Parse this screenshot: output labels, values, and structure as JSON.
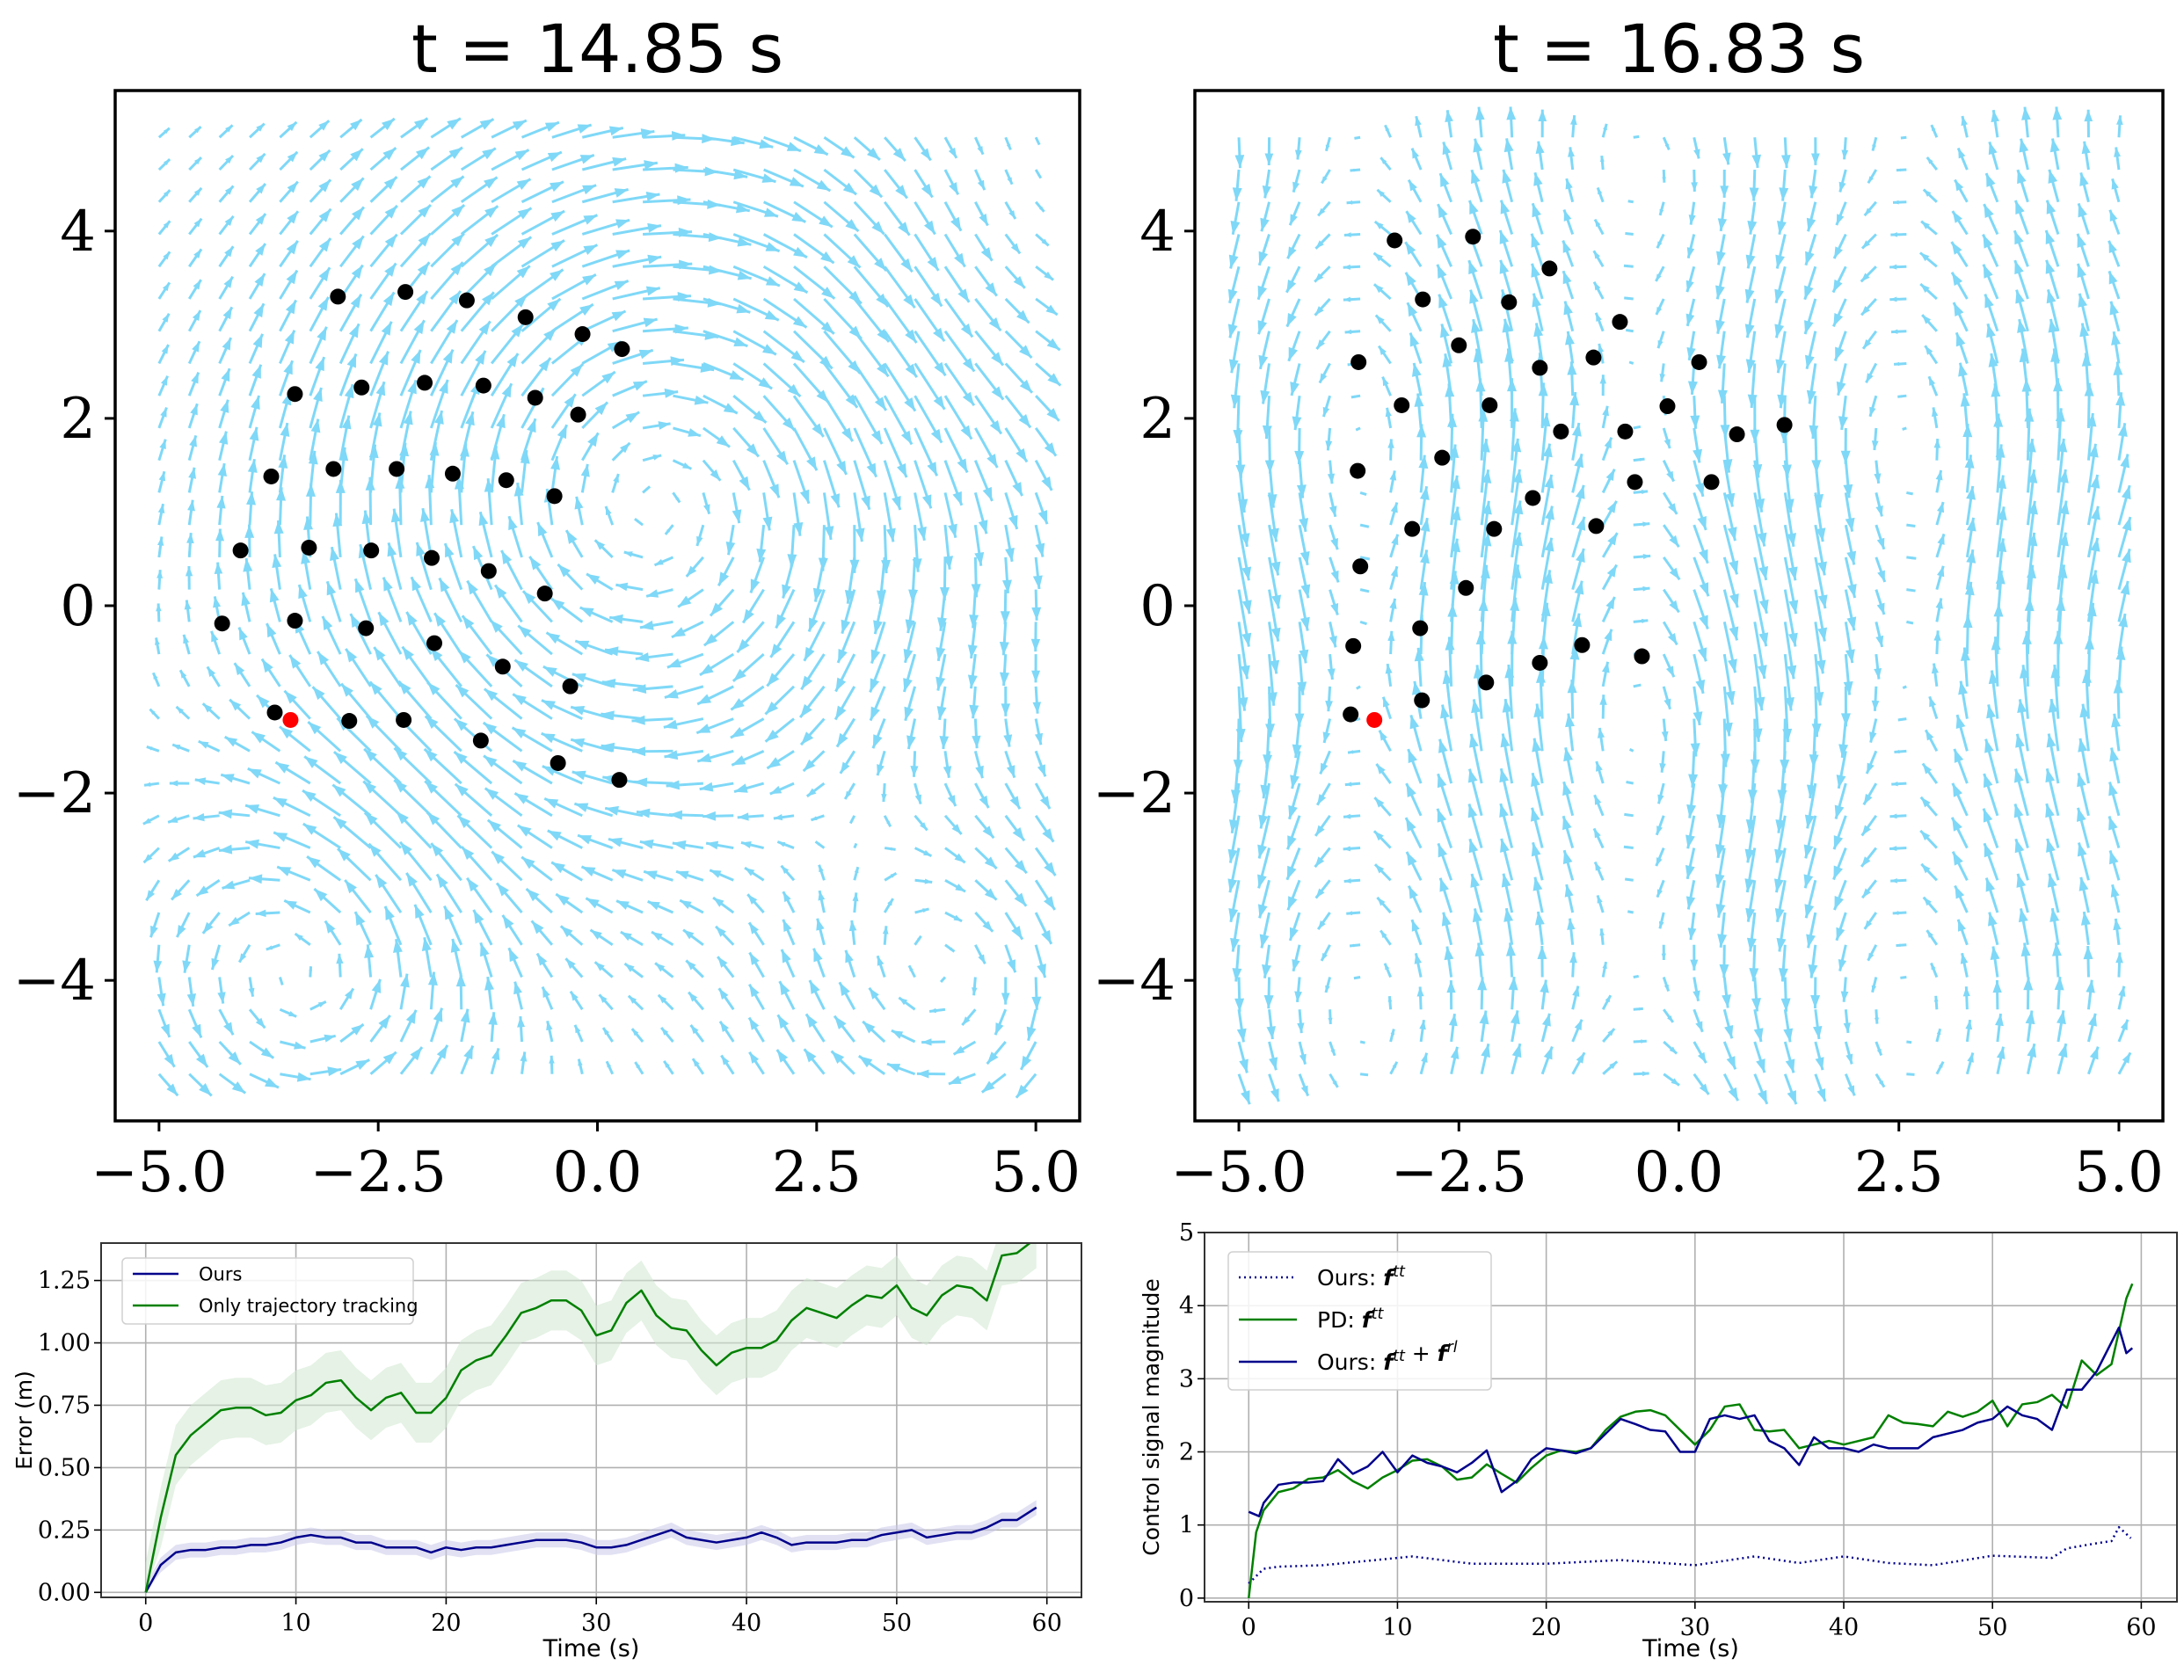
{
  "chart_data": [
    {
      "type": "quiver+scatter",
      "title": "t = 14.85 s",
      "xlim": [
        -5.5,
        5.5
      ],
      "ylim": [
        -5.5,
        5.5
      ],
      "xticks": [
        -5,
        -2.5,
        0,
        2.5,
        5
      ],
      "xtick_labels": [
        "−5.0",
        "−2.5",
        "0.0",
        "2.5",
        "5.0"
      ],
      "yticks": [
        4,
        2,
        0,
        -2,
        -4
      ],
      "ytick_labels": [
        "4",
        "2",
        "0",
        "−2",
        "−4"
      ],
      "grid": false,
      "field": {
        "x_range": [
          -5,
          5
        ],
        "y_range": [
          -5,
          5
        ],
        "points_per_axis": 30,
        "pattern": "vortical flow",
        "color": "#7fd8f7"
      },
      "agents": {
        "color": "#000000",
        "points": [
          [
            -2.96,
            3.3
          ],
          [
            -2.19,
            3.35
          ],
          [
            -1.49,
            3.26
          ],
          [
            -0.82,
            3.08
          ],
          [
            -0.17,
            2.9
          ],
          [
            0.28,
            2.74
          ],
          [
            -3.45,
            2.26
          ],
          [
            -2.69,
            2.33
          ],
          [
            -1.97,
            2.38
          ],
          [
            -1.3,
            2.35
          ],
          [
            -0.71,
            2.22
          ],
          [
            -0.22,
            2.04
          ],
          [
            -3.72,
            1.38
          ],
          [
            -3.01,
            1.46
          ],
          [
            -2.29,
            1.46
          ],
          [
            -1.65,
            1.41
          ],
          [
            -1.04,
            1.34
          ],
          [
            -0.49,
            1.17
          ],
          [
            -4.07,
            0.59
          ],
          [
            -3.29,
            0.62
          ],
          [
            -2.58,
            0.59
          ],
          [
            -1.89,
            0.51
          ],
          [
            -1.24,
            0.37
          ],
          [
            -0.6,
            0.13
          ],
          [
            -4.28,
            -0.19
          ],
          [
            -3.45,
            -0.16
          ],
          [
            -2.64,
            -0.24
          ],
          [
            -1.86,
            -0.4
          ],
          [
            -1.08,
            -0.65
          ],
          [
            -0.31,
            -0.86
          ],
          [
            -3.68,
            -1.14
          ],
          [
            -2.83,
            -1.23
          ],
          [
            -2.21,
            -1.22
          ],
          [
            -1.33,
            -1.44
          ],
          [
            -0.45,
            -1.68
          ],
          [
            0.25,
            -1.86
          ]
        ]
      },
      "highlight": {
        "color": "#ff0000",
        "point": [
          -3.5,
          -1.22
        ]
      }
    },
    {
      "type": "quiver+scatter",
      "title": "t = 16.83 s",
      "xlim": [
        -5.5,
        5.5
      ],
      "ylim": [
        -5.5,
        5.5
      ],
      "xticks": [
        -5,
        -2.5,
        0,
        2.5,
        5
      ],
      "xtick_labels": [
        "−5.0",
        "−2.5",
        "0.0",
        "2.5",
        "5.0"
      ],
      "yticks": [
        4,
        2,
        0,
        -2,
        -4
      ],
      "ytick_labels": [
        "4",
        "2",
        "0",
        "−2",
        "−4"
      ],
      "grid": false,
      "field": {
        "x_range": [
          -5,
          5
        ],
        "y_range": [
          -5,
          5
        ],
        "points_per_axis": 30,
        "pattern": "vertical bands",
        "color": "#7fd8f7"
      },
      "agents": {
        "color": "#000000",
        "points": [
          [
            -3.23,
            3.9
          ],
          [
            -2.34,
            3.94
          ],
          [
            -1.47,
            3.6
          ],
          [
            -2.91,
            3.27
          ],
          [
            -1.93,
            3.24
          ],
          [
            -0.67,
            3.03
          ],
          [
            -3.64,
            2.6
          ],
          [
            -2.5,
            2.78
          ],
          [
            -1.58,
            2.54
          ],
          [
            -0.97,
            2.65
          ],
          [
            0.23,
            2.6
          ],
          [
            -3.15,
            2.14
          ],
          [
            -2.15,
            2.14
          ],
          [
            -1.34,
            1.86
          ],
          [
            -0.61,
            1.86
          ],
          [
            -0.13,
            2.13
          ],
          [
            0.66,
            1.83
          ],
          [
            1.2,
            1.93
          ],
          [
            -3.65,
            1.44
          ],
          [
            -2.69,
            1.58
          ],
          [
            -1.66,
            1.15
          ],
          [
            -0.5,
            1.32
          ],
          [
            0.37,
            1.32
          ],
          [
            -3.62,
            0.42
          ],
          [
            -3.03,
            0.82
          ],
          [
            -2.1,
            0.82
          ],
          [
            -0.94,
            0.85
          ],
          [
            -2.42,
            0.19
          ],
          [
            -3.7,
            -0.43
          ],
          [
            -2.94,
            -0.24
          ],
          [
            -1.1,
            -0.42
          ],
          [
            -0.42,
            -0.54
          ],
          [
            -1.58,
            -0.61
          ],
          [
            -2.19,
            -0.82
          ],
          [
            -2.92,
            -1.01
          ],
          [
            -3.73,
            -1.16
          ]
        ]
      },
      "highlight": {
        "color": "#ff0000",
        "point": [
          -3.46,
          -1.22
        ]
      }
    },
    {
      "type": "line",
      "xlabel": "Time (s)",
      "ylabel": "Error (m)",
      "xlim": [
        -2.97,
        62.3
      ],
      "ylim": [
        -0.02,
        1.4
      ],
      "xticks": [
        0,
        10,
        20,
        30,
        40,
        50,
        60
      ],
      "xtick_labels": [
        "0",
        "10",
        "20",
        "30",
        "40",
        "50",
        "60"
      ],
      "yticks": [
        0,
        0.25,
        0.5,
        0.75,
        1.0,
        1.25
      ],
      "ytick_labels": [
        "0.00",
        "0.25",
        "0.50",
        "0.75",
        "1.00",
        "1.25"
      ],
      "grid": true,
      "legend": "upper-left",
      "x": [
        0,
        1,
        2,
        3,
        4,
        5,
        6,
        7,
        8,
        9,
        10,
        11,
        12,
        13,
        14,
        15,
        16,
        17,
        18,
        19,
        20,
        21,
        22,
        23,
        24,
        25,
        26,
        27,
        28,
        29,
        30,
        31,
        32,
        33,
        34,
        35,
        36,
        37,
        38,
        39,
        40,
        41,
        42,
        43,
        44,
        45,
        46,
        47,
        48,
        49,
        50,
        51,
        52,
        53,
        54,
        55,
        56,
        57,
        58,
        59.3
      ],
      "series": [
        {
          "name": "Ours",
          "color": "#00008b",
          "band_color": "#c8c8ea",
          "values": [
            0,
            0.11,
            0.16,
            0.17,
            0.17,
            0.18,
            0.18,
            0.19,
            0.19,
            0.2,
            0.22,
            0.23,
            0.22,
            0.22,
            0.2,
            0.2,
            0.18,
            0.18,
            0.18,
            0.16,
            0.18,
            0.17,
            0.18,
            0.18,
            0.19,
            0.2,
            0.21,
            0.21,
            0.21,
            0.2,
            0.18,
            0.18,
            0.19,
            0.21,
            0.23,
            0.25,
            0.22,
            0.21,
            0.2,
            0.21,
            0.22,
            0.24,
            0.22,
            0.19,
            0.2,
            0.2,
            0.2,
            0.21,
            0.21,
            0.23,
            0.24,
            0.25,
            0.22,
            0.23,
            0.24,
            0.24,
            0.26,
            0.29,
            0.29,
            0.34
          ],
          "band": 0.03
        },
        {
          "name": "Only trajectory tracking",
          "color": "#008000",
          "band_color": "#cfe8cf",
          "values": [
            0,
            0.3,
            0.55,
            0.63,
            0.68,
            0.73,
            0.74,
            0.74,
            0.71,
            0.72,
            0.77,
            0.79,
            0.84,
            0.85,
            0.78,
            0.73,
            0.78,
            0.8,
            0.72,
            0.72,
            0.78,
            0.89,
            0.93,
            0.95,
            1.03,
            1.12,
            1.14,
            1.17,
            1.17,
            1.13,
            1.03,
            1.05,
            1.16,
            1.21,
            1.11,
            1.06,
            1.05,
            0.97,
            0.91,
            0.96,
            0.98,
            0.98,
            1.01,
            1.09,
            1.14,
            1.12,
            1.1,
            1.15,
            1.19,
            1.18,
            1.23,
            1.14,
            1.11,
            1.19,
            1.23,
            1.22,
            1.17,
            1.35,
            1.36,
            1.42
          ],
          "band": 0.12
        }
      ]
    },
    {
      "type": "line",
      "xlabel": "Time (s)",
      "ylabel": "Control signal magnitude",
      "xlim": [
        -2.97,
        62.4
      ],
      "ylim": [
        -0.05,
        5
      ],
      "xticks": [
        0,
        10,
        20,
        30,
        40,
        50,
        60
      ],
      "xtick_labels": [
        "0",
        "10",
        "20",
        "30",
        "40",
        "50",
        "60"
      ],
      "yticks": [
        0,
        1,
        2,
        3,
        4,
        5
      ],
      "ytick_labels": [
        "0",
        "1",
        "2",
        "3",
        "4",
        "5"
      ],
      "grid": true,
      "legend": "upper-left",
      "series": [
        {
          "name": "Ours: f^{tt}",
          "color": "#00008b",
          "style": "dotted",
          "x": [
            0,
            1,
            2,
            5,
            10,
            11,
            15,
            20,
            25,
            30,
            34,
            37,
            40,
            43,
            46,
            50,
            54,
            55,
            57,
            58,
            58.5,
            59.3
          ],
          "values": [
            0.2,
            0.4,
            0.43,
            0.45,
            0.55,
            0.57,
            0.47,
            0.47,
            0.52,
            0.45,
            0.57,
            0.48,
            0.57,
            0.48,
            0.45,
            0.58,
            0.55,
            0.68,
            0.75,
            0.78,
            0.97,
            0.82
          ]
        },
        {
          "name": "PD: f^{tt}",
          "color": "#008000",
          "style": "solid",
          "x": [
            0,
            0.5,
            1,
            2,
            3,
            4,
            5,
            6,
            7,
            8,
            9,
            10,
            11,
            12,
            13,
            14,
            15,
            16,
            17,
            18,
            19,
            20,
            21,
            22,
            23,
            24,
            25,
            26,
            27,
            28,
            29,
            30,
            31,
            32,
            33,
            34,
            35,
            36,
            37,
            38,
            39,
            40,
            41,
            42,
            43,
            44,
            45,
            46,
            47,
            48,
            49,
            50,
            51,
            52,
            53,
            54,
            55,
            56,
            57,
            58,
            59,
            59.4
          ],
          "values": [
            0,
            0.9,
            1.2,
            1.45,
            1.5,
            1.63,
            1.65,
            1.75,
            1.6,
            1.5,
            1.65,
            1.75,
            1.88,
            1.9,
            1.8,
            1.62,
            1.65,
            1.83,
            1.7,
            1.58,
            1.78,
            1.95,
            2.02,
            2.0,
            2.05,
            2.3,
            2.48,
            2.55,
            2.57,
            2.5,
            2.3,
            2.1,
            2.3,
            2.62,
            2.65,
            2.3,
            2.28,
            2.3,
            2.05,
            2.1,
            2.15,
            2.1,
            2.15,
            2.2,
            2.5,
            2.4,
            2.38,
            2.35,
            2.55,
            2.48,
            2.55,
            2.7,
            2.35,
            2.65,
            2.68,
            2.78,
            2.6,
            3.25,
            3.05,
            3.2,
            4.1,
            4.3
          ]
        },
        {
          "name": "Ours: f^{tt} + f^{rl}",
          "color": "#00008b",
          "style": "solid",
          "x": [
            0,
            0.7,
            1,
            2,
            3,
            4,
            5,
            6,
            7,
            8,
            9,
            10,
            11,
            12,
            13,
            14,
            15,
            16,
            17,
            18,
            19,
            20,
            21,
            22,
            23,
            24,
            25,
            26,
            27,
            28,
            29,
            30,
            31,
            32,
            33,
            34,
            35,
            36,
            37,
            38,
            39,
            40,
            41,
            42,
            43,
            44,
            45,
            46,
            47,
            48,
            49,
            50,
            51,
            52,
            53,
            54,
            55,
            56,
            57,
            58,
            58.5,
            59,
            59.4
          ],
          "values": [
            1.18,
            1.12,
            1.3,
            1.55,
            1.58,
            1.58,
            1.6,
            1.9,
            1.7,
            1.8,
            2.0,
            1.72,
            1.95,
            1.85,
            1.8,
            1.72,
            1.85,
            2.02,
            1.45,
            1.6,
            1.9,
            2.05,
            2.02,
            1.98,
            2.05,
            2.25,
            2.45,
            2.38,
            2.3,
            2.28,
            2.0,
            2.0,
            2.45,
            2.5,
            2.45,
            2.5,
            2.15,
            2.05,
            1.82,
            2.2,
            2.05,
            2.05,
            2.0,
            2.1,
            2.05,
            2.05,
            2.05,
            2.2,
            2.25,
            2.3,
            2.4,
            2.45,
            2.62,
            2.5,
            2.45,
            2.3,
            2.85,
            2.85,
            3.1,
            3.5,
            3.7,
            3.35,
            3.42
          ]
        }
      ]
    }
  ]
}
